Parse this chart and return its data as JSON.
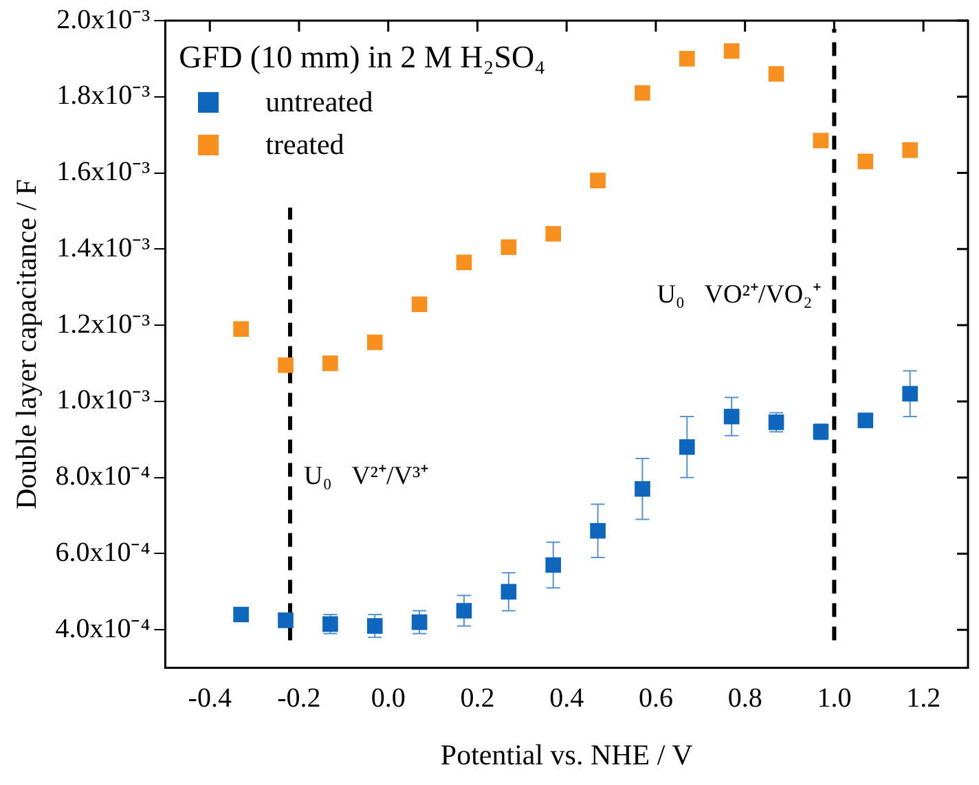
{
  "chart_data": {
    "type": "scatter",
    "title": "GFD (10 mm) in 2 M H₂SO₄",
    "xlabel": "Potential vs. NHE / V",
    "ylabel": "Double layer capacitance / F",
    "x": [
      -0.33,
      -0.23,
      -0.13,
      -0.03,
      0.07,
      0.17,
      0.27,
      0.37,
      0.47,
      0.57,
      0.67,
      0.77,
      0.87,
      0.97,
      1.07,
      1.17
    ],
    "series": [
      {
        "name": "untreated",
        "color": "#0e66bd",
        "values": [
          0.00044,
          0.000425,
          0.000415,
          0.00041,
          0.00042,
          0.00045,
          0.0005,
          0.00057,
          0.00066,
          0.00077,
          0.00088,
          0.00096,
          0.000945,
          0.00092,
          0.00095,
          0.00102
        ],
        "errors": [
          null,
          null,
          2.5e-05,
          3e-05,
          3e-05,
          4e-05,
          5e-05,
          6e-05,
          7e-05,
          8e-05,
          8e-05,
          5e-05,
          2.5e-05,
          2e-05,
          null,
          6e-05
        ]
      },
      {
        "name": "treated",
        "color": "#f7901e",
        "values": [
          0.00119,
          0.001095,
          0.0011,
          0.001155,
          0.001255,
          0.001365,
          0.001405,
          0.00144,
          0.00158,
          0.00181,
          0.0019,
          0.00192,
          0.00186,
          0.001685,
          0.00163,
          0.00166
        ]
      }
    ],
    "xlim": [
      -0.5,
      1.3
    ],
    "xticks": [
      -0.4,
      -0.2,
      {
        "value": 0,
        "label": "0.0"
      },
      0.2,
      0.4,
      0.6,
      0.8,
      {
        "value": 1,
        "label": "1.0"
      },
      1.2
    ],
    "ylim": [
      0.0003,
      0.002
    ],
    "yticks": [
      {
        "value": 0.0004,
        "label": "4.0x10⁻⁴"
      },
      {
        "value": 0.0006,
        "label": "6.0x10⁻⁴"
      },
      {
        "value": 0.0008,
        "label": "8.0x10⁻⁴"
      },
      {
        "value": 0.001,
        "label": "1.0x10⁻³"
      },
      {
        "value": 0.0012,
        "label": "1.2x10⁻³"
      },
      {
        "value": 0.0014,
        "label": "1.4x10⁻³"
      },
      {
        "value": 0.0016,
        "label": "1.6x10⁻³"
      },
      {
        "value": 0.0018,
        "label": "1.8x10⁻³"
      },
      {
        "value": 0.002,
        "label": "2.0x10⁻³"
      }
    ],
    "ref_lines": [
      {
        "axis": "x",
        "value": -0.22,
        "color": "#000000",
        "line_style": "dashed",
        "label": "U₀  V²⁺/V³⁺"
      },
      {
        "axis": "x",
        "value": 1.0,
        "color": "#000000",
        "line_style": "dashed",
        "label": "U₀  VO²⁺/VO₂⁺"
      }
    ],
    "legend": "top left",
    "marker": "square",
    "grid": false
  }
}
